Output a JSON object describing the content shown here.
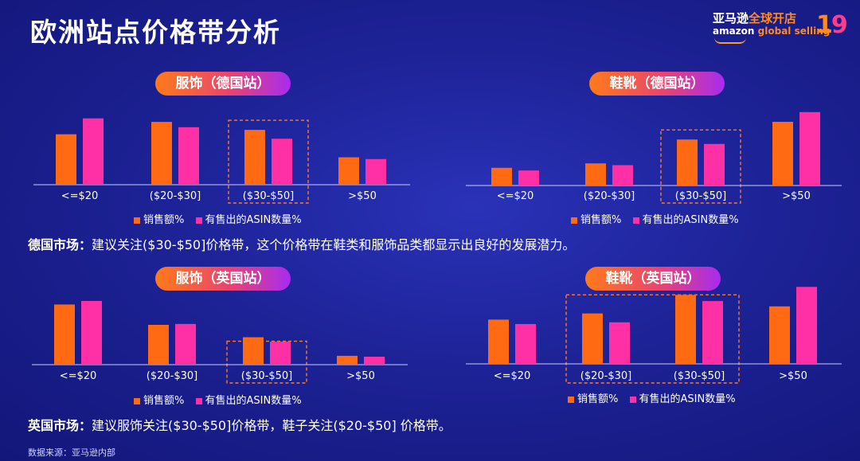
{
  "title": "欧洲站点价格带分析",
  "brand": {
    "cn_prefix": "亚马逊",
    "cn_suffix": "全球开店",
    "en_prefix": "amazon",
    "en_suffix": " global selling",
    "badge_1": "1",
    "badge_9": "9"
  },
  "colors": {
    "sales": "#ff6a13",
    "asin": "#ff2fa6",
    "axis": "#c8ccff",
    "highlight": "#ff7a2a"
  },
  "legend": {
    "sales": "销售额%",
    "asin": "有售出的ASIN数量%"
  },
  "chart_data": [
    {
      "type": "bar",
      "title": "服饰（德国站）",
      "categories": [
        "<=$20",
        "($20-$30]",
        "($30-$50]",
        ">$50"
      ],
      "series": [
        {
          "name": "销售额%",
          "values": [
            57,
            71,
            62,
            31
          ]
        },
        {
          "name": "有售出的ASIN数量%",
          "values": [
            75,
            65,
            52,
            29
          ]
        }
      ],
      "highlight": [
        "($30-$50]"
      ]
    },
    {
      "type": "bar",
      "title": "鞋靴（德国站）",
      "categories": [
        "<=$20",
        "($20-$30]",
        "($30-$50]",
        ">$50"
      ],
      "series": [
        {
          "name": "销售额%",
          "values": [
            20,
            25,
            52,
            72
          ]
        },
        {
          "name": "有售出的ASIN数量%",
          "values": [
            17,
            23,
            47,
            83
          ]
        }
      ],
      "highlight": [
        "($30-$50]"
      ]
    },
    {
      "type": "bar",
      "title": "服饰（英国站）",
      "categories": [
        "<=$20",
        "($20-$30]",
        "($30-$50]",
        ">$50"
      ],
      "series": [
        {
          "name": "销售额%",
          "values": [
            68,
            45,
            31,
            10
          ]
        },
        {
          "name": "有售出的ASIN数量%",
          "values": [
            72,
            46,
            26,
            9
          ]
        }
      ],
      "highlight": [
        "($30-$50]"
      ]
    },
    {
      "type": "bar",
      "title": "鞋靴（英国站）",
      "categories": [
        "<=$20",
        "($20-$30]",
        "($30-$50]",
        ">$50"
      ],
      "series": [
        {
          "name": "销售额%",
          "values": [
            50,
            57,
            78,
            65
          ]
        },
        {
          "name": "有售出的ASIN数量%",
          "values": [
            45,
            47,
            71,
            87
          ]
        }
      ],
      "highlight": [
        "($20-$30]",
        "($30-$50]"
      ]
    }
  ],
  "notes": {
    "de_label": "德国市场：",
    "de_text": "建议关注($30-$50]价格带，这个价格带在鞋类和服饰品类都显示出良好的发展潜力。",
    "uk_label": "英国市场：",
    "uk_text": "建议服饰关注($30-$50]价格带，鞋子关注($20-$50] 价格带。"
  },
  "source": "数据来源：亚马逊内部"
}
